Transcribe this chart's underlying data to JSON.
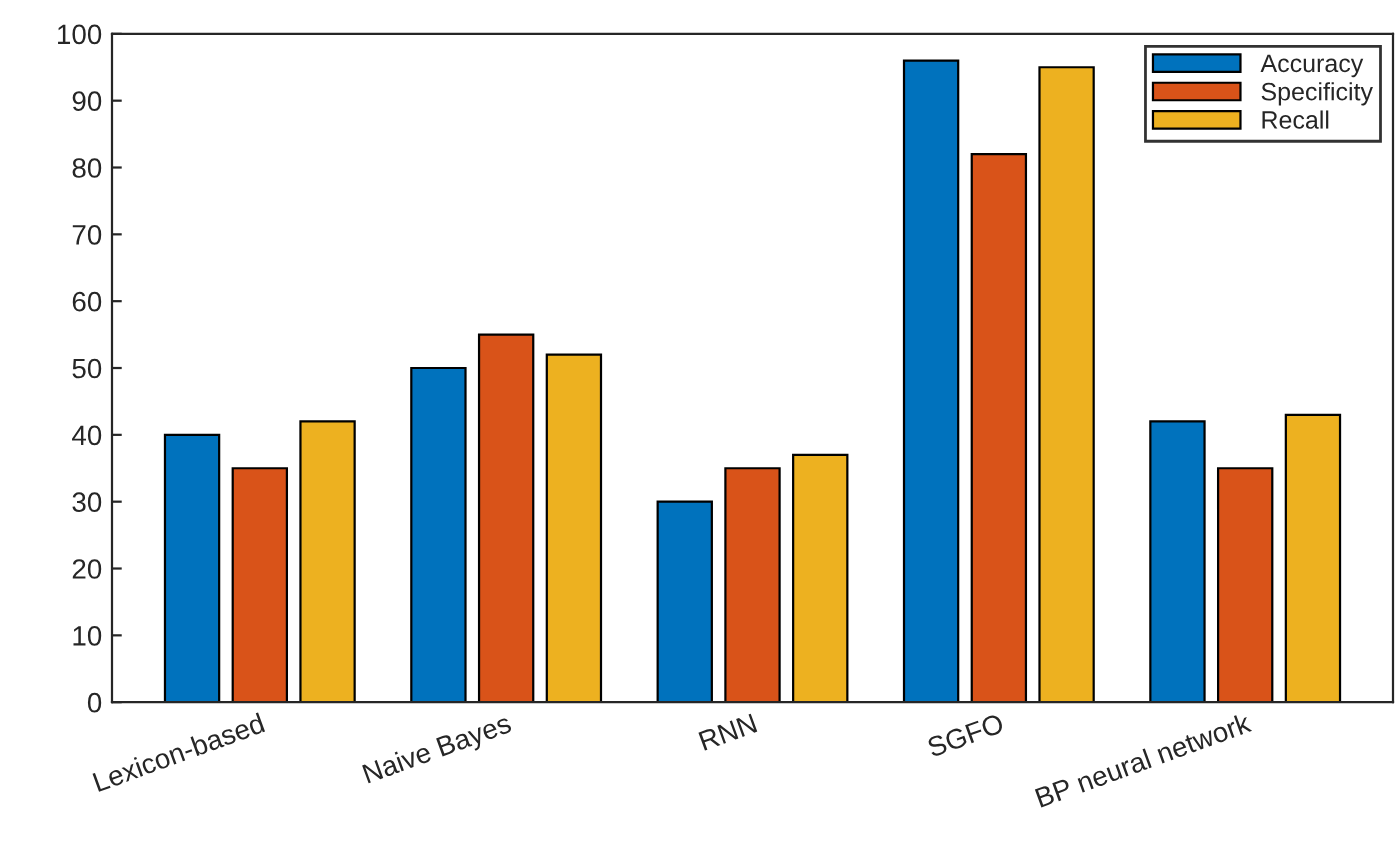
{
  "chart_data": {
    "type": "bar",
    "categories": [
      "Lexicon-based",
      "Naive Bayes",
      "RNN",
      "SGFO",
      "BP neural network"
    ],
    "series": [
      {
        "name": "Accuracy",
        "color": "#0072bd",
        "values": [
          40,
          50,
          30,
          96,
          42
        ]
      },
      {
        "name": "Specificity",
        "color": "#d95319",
        "values": [
          35,
          55,
          35,
          82,
          35
        ]
      },
      {
        "name": "Recall",
        "color": "#edb120",
        "values": [
          42,
          52,
          37,
          95,
          43
        ]
      }
    ],
    "ylim": [
      0,
      100
    ],
    "yticks": [
      0,
      10,
      20,
      30,
      40,
      50,
      60,
      70,
      80,
      90,
      100
    ],
    "grid": false,
    "legend": "top right"
  }
}
